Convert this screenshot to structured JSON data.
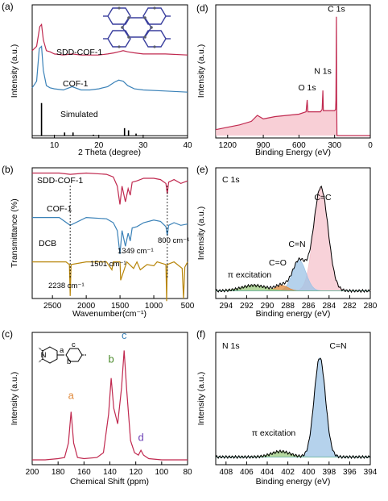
{
  "colors": {
    "crimson": "#c0294f",
    "blue": "#3b82b8",
    "black": "#000000",
    "gold": "#b8860b",
    "orange": "#e08a3c",
    "green": "#4a8a2a",
    "violet": "#6a3fb5",
    "pink_fill": "#f6c3cc",
    "blue_fill": "#9cc3e6",
    "green_fill": "#9bc97d"
  },
  "chart_data": [
    {
      "id": "a",
      "panel_label": "(a)",
      "type": "line",
      "xlabel": "2 Theta (degree)",
      "ylabel": "Intensity (a.u.)",
      "xlim": [
        5,
        40
      ],
      "xticks": [
        10,
        20,
        30,
        40
      ],
      "y_ticks_shown": false,
      "series": [
        {
          "name": "SDD-COF-1",
          "color": "crimson",
          "offset": 0.72,
          "x": [
            5,
            6,
            6.7,
            7.1,
            7.5,
            8.2,
            9,
            10,
            12,
            14,
            16,
            18,
            20,
            22,
            23.5,
            24.5,
            25.5,
            26.5,
            28,
            30,
            35,
            40
          ],
          "y": [
            0.06,
            0.1,
            0.28,
            0.3,
            0.16,
            0.06,
            0.05,
            0.03,
            0.02,
            0.03,
            0.02,
            0.02,
            0.02,
            0.03,
            0.04,
            0.05,
            0.06,
            0.05,
            0.04,
            0.03,
            0.03,
            0.02
          ]
        },
        {
          "name": "COF-1",
          "color": "blue",
          "offset": 0.38,
          "x": [
            5,
            6,
            6.6,
            7.1,
            7.5,
            8.2,
            9,
            10,
            12,
            14,
            16,
            18,
            20,
            22,
            23.5,
            24.5,
            25.5,
            26.5,
            28,
            30,
            35,
            40
          ],
          "y": [
            0.06,
            0.12,
            0.42,
            0.44,
            0.22,
            0.08,
            0.06,
            0.05,
            0.04,
            0.07,
            0.04,
            0.04,
            0.05,
            0.07,
            0.11,
            0.13,
            0.12,
            0.08,
            0.05,
            0.04,
            0.03,
            0.02
          ]
        },
        {
          "name": "Simulated",
          "color": "black",
          "offset": 0.0,
          "style": "sticks",
          "x": [
            7.1,
            12.3,
            14.2,
            18.8,
            25.8,
            26.7,
            28.4
          ],
          "y": [
            0.3,
            0.03,
            0.03,
            0.01,
            0.07,
            0.05,
            0.02
          ]
        }
      ]
    },
    {
      "id": "b",
      "panel_label": "(b)",
      "type": "line",
      "xlabel": "Wavenumber(cm⁻¹)",
      "ylabel": "Transmittance (%)",
      "xlim": [
        2800,
        500
      ],
      "xticks": [
        2500,
        2000,
        1500,
        1000,
        500
      ],
      "y_ticks_shown": false,
      "annotations": [
        "2238 cm⁻¹",
        "1501 cm⁻¹",
        "1349 cm⁻¹",
        "800 cm⁻¹"
      ],
      "series": [
        {
          "name": "SDD-COF-1",
          "color": "crimson",
          "offset": 0.84,
          "x": [
            2800,
            2400,
            2238,
            2000,
            1700,
            1600,
            1540,
            1501,
            1470,
            1420,
            1380,
            1349,
            1320,
            1250,
            1150,
            1000,
            900,
            820,
            800,
            780,
            700,
            600,
            500
          ],
          "y": [
            0.12,
            0.12,
            0.11,
            0.12,
            0.11,
            0.09,
            0.02,
            -0.12,
            0.02,
            -0.1,
            0.0,
            -0.05,
            0.05,
            0.06,
            0.08,
            0.08,
            0.07,
            0.04,
            -0.04,
            0.05,
            0.07,
            0.04,
            0.06
          ]
        },
        {
          "name": "COF-1",
          "color": "blue",
          "offset": 0.52,
          "x": [
            2800,
            2400,
            2238,
            2000,
            1700,
            1600,
            1540,
            1501,
            1470,
            1420,
            1380,
            1349,
            1320,
            1250,
            1150,
            1000,
            900,
            820,
            800,
            780,
            700,
            600,
            500
          ],
          "y": [
            0.1,
            0.1,
            0.04,
            0.1,
            0.09,
            0.06,
            0.0,
            -0.18,
            0.0,
            -0.12,
            -0.02,
            -0.08,
            0.02,
            0.03,
            0.06,
            0.08,
            0.07,
            0.03,
            -0.04,
            0.04,
            0.06,
            0.04,
            0.05
          ]
        },
        {
          "name": "DCB",
          "color": "gold",
          "offset": 0.28,
          "x": [
            2800,
            2300,
            2250,
            2238,
            2225,
            2000,
            1700,
            1620,
            1600,
            1500,
            1490,
            1400,
            1300,
            1250,
            1200,
            1100,
            1000,
            950,
            820,
            810,
            800,
            700,
            580,
            560,
            540,
            500
          ],
          "y": [
            0.0,
            0.0,
            -0.02,
            -0.26,
            -0.02,
            0.0,
            0.0,
            -0.06,
            0.0,
            0.0,
            -0.14,
            0.0,
            -0.05,
            0.0,
            -0.06,
            -0.02,
            -0.03,
            0.0,
            -0.02,
            -0.3,
            -0.02,
            0.0,
            -0.05,
            -0.28,
            -0.04,
            0.0
          ]
        }
      ]
    },
    {
      "id": "c",
      "panel_label": "(c)",
      "type": "line",
      "xlabel": "Chemical Shift (ppm)",
      "ylabel": "Intensity (a.u.)",
      "xlim": [
        200,
        80
      ],
      "xticks": [
        200,
        180,
        160,
        140,
        120,
        100,
        80
      ],
      "y_ticks_shown": false,
      "peak_labels": [
        {
          "text": "a",
          "x": 170,
          "y": 0.5,
          "color": "orange"
        },
        {
          "text": "b",
          "x": 139,
          "y": 0.8,
          "color": "green"
        },
        {
          "text": "c",
          "x": 129,
          "y": 1.0,
          "color": "blue"
        },
        {
          "text": "d",
          "x": 116,
          "y": 0.15,
          "color": "violet"
        }
      ],
      "inset_labels": [
        "N",
        "a",
        "b",
        "c"
      ],
      "series": [
        {
          "name": "",
          "color": "crimson",
          "x": [
            200,
            190,
            180,
            175,
            172,
            170,
            168,
            165,
            160,
            150,
            145,
            141,
            139,
            137,
            134,
            131,
            129,
            127,
            124,
            121,
            118,
            116,
            114,
            110,
            100,
            90,
            80
          ],
          "y": [
            0.02,
            0.02,
            0.03,
            0.04,
            0.16,
            0.42,
            0.16,
            0.04,
            0.03,
            0.04,
            0.08,
            0.4,
            0.7,
            0.45,
            0.32,
            0.62,
            0.93,
            0.6,
            0.18,
            0.08,
            0.06,
            0.1,
            0.06,
            0.03,
            0.02,
            0.02,
            0.02
          ]
        }
      ]
    },
    {
      "id": "d",
      "panel_label": "(d)",
      "type": "area",
      "xlabel": "Binding Energy (eV)",
      "ylabel": "Intensity (a.u.)",
      "xlim": [
        1300,
        0
      ],
      "xticks": [
        1200,
        900,
        600,
        300,
        0
      ],
      "y_ticks_shown": false,
      "peak_labels": [
        {
          "text": "C 1s",
          "x": 285,
          "y": 1.0
        },
        {
          "text": "N 1s",
          "x": 399,
          "y": 0.48
        },
        {
          "text": "O 1s",
          "x": 531,
          "y": 0.34
        }
      ],
      "series": [
        {
          "name": "",
          "color": "crimson",
          "fill": "pink_fill",
          "x": [
            1300,
            1200,
            1100,
            1000,
            950,
            900,
            800,
            700,
            600,
            540,
            531,
            525,
            500,
            420,
            405,
            399,
            395,
            380,
            300,
            292,
            289,
            287,
            285,
            283,
            280,
            270,
            200,
            100,
            0
          ],
          "y": [
            0.05,
            0.07,
            0.09,
            0.12,
            0.17,
            0.14,
            0.16,
            0.17,
            0.18,
            0.2,
            0.3,
            0.2,
            0.2,
            0.2,
            0.22,
            0.38,
            0.21,
            0.21,
            0.21,
            0.22,
            0.3,
            0.6,
            1.0,
            0.35,
            0.0,
            0.0,
            0.0,
            0.0,
            0.0
          ]
        }
      ]
    },
    {
      "id": "e",
      "panel_label": "(e)",
      "type": "line",
      "subtitle": "C 1s",
      "xlabel": "Binding energy (eV)",
      "ylabel": "Intensity (a.u.)",
      "xlim": [
        295,
        280
      ],
      "xticks": [
        294,
        292,
        290,
        288,
        286,
        284,
        282,
        280
      ],
      "y_ticks_shown": false,
      "peak_labels": [
        "C=C",
        "C=N",
        "C=O",
        "π excitation"
      ],
      "components": [
        {
          "label": "C=C",
          "center": 284.8,
          "height": 0.95,
          "width": 0.7,
          "fill": "pink_fill"
        },
        {
          "label": "C=N",
          "center": 286.9,
          "height": 0.28,
          "width": 0.65,
          "fill": "blue_fill"
        },
        {
          "label": "C=O",
          "center": 288.6,
          "height": 0.05,
          "width": 0.6,
          "fill": "orange"
        },
        {
          "label": "π excitation",
          "center": 291.3,
          "height": 0.05,
          "width": 1.2,
          "fill": "green_fill"
        }
      ],
      "baseline": 0.02
    },
    {
      "id": "f",
      "panel_label": "(f)",
      "type": "line",
      "subtitle": "N 1s",
      "xlabel": "Binding energy (eV)",
      "ylabel": "Intensity (a.u.)",
      "xlim": [
        409,
        394
      ],
      "xticks": [
        408,
        406,
        404,
        402,
        400,
        398,
        396,
        394
      ],
      "y_ticks_shown": false,
      "peak_labels": [
        "C=N",
        "π excitation"
      ],
      "components": [
        {
          "label": "C=N",
          "center": 398.9,
          "height": 0.9,
          "width": 0.55,
          "fill": "blue_fill"
        },
        {
          "label": "π excitation",
          "center": 402.7,
          "height": 0.05,
          "width": 0.9,
          "fill": "green_fill"
        }
      ],
      "baseline": 0.02
    }
  ]
}
